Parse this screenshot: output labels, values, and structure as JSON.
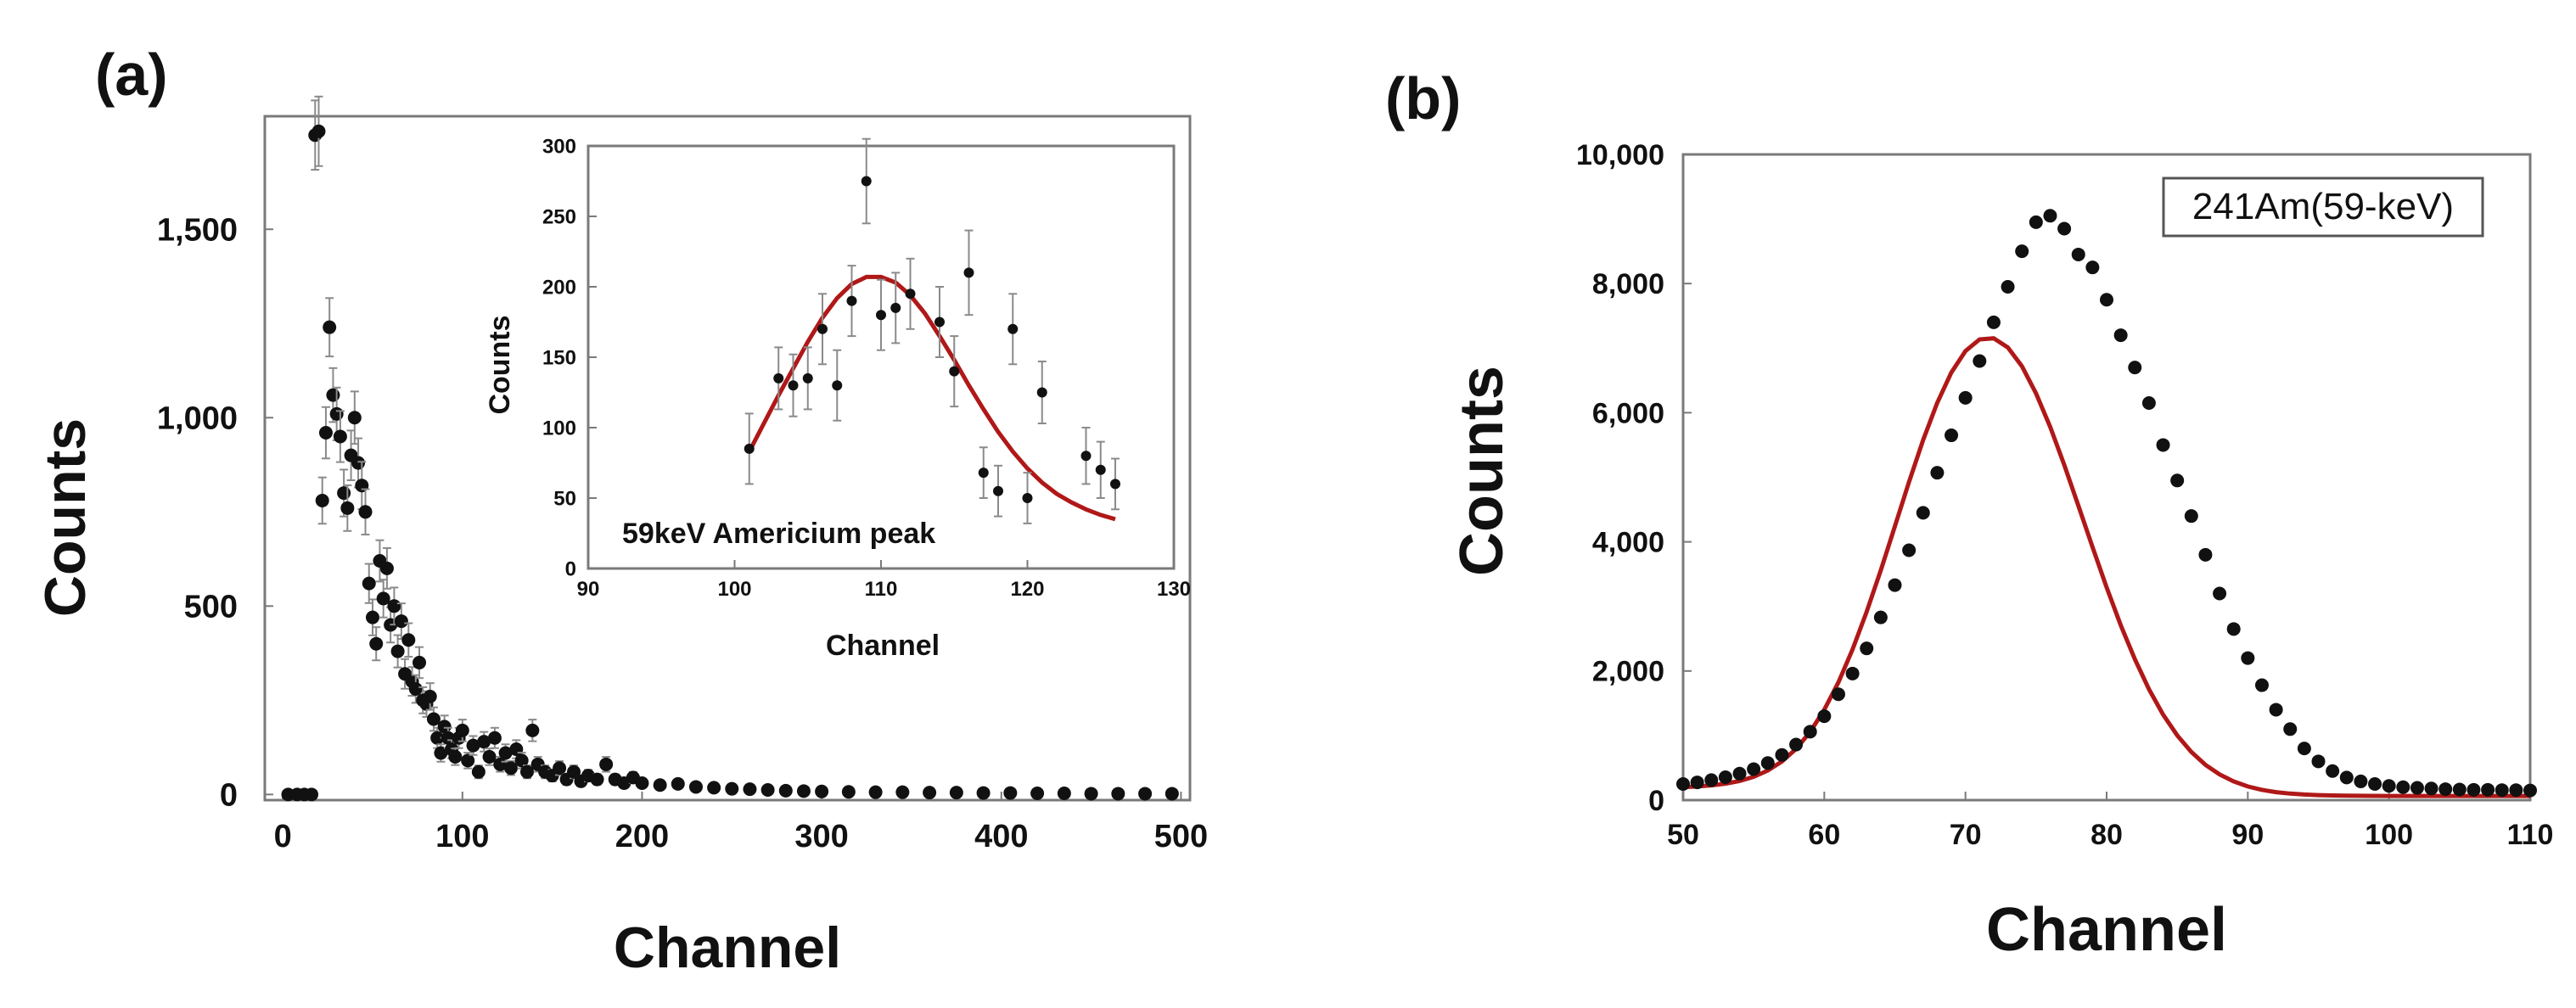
{
  "figure": {
    "panel_a_label": "(a)",
    "panel_b_label": "(b)"
  },
  "colors": {
    "fit_line": "#b01818",
    "marker": "#111111",
    "error_bar": "#8a8a8a",
    "frame": "#7a7a7a",
    "background": "#ffffff"
  },
  "chart_data": [
    {
      "id": "a-main",
      "type": "scatter",
      "title": "",
      "xlabel": "Channel",
      "ylabel": "Counts",
      "xlim": [
        -10,
        505
      ],
      "ylim": [
        -15,
        1800
      ],
      "xticks": [
        0,
        100,
        200,
        300,
        400,
        500
      ],
      "xtick_labels": [
        "0",
        "100",
        "200",
        "300",
        "400",
        "500"
      ],
      "yticks": [
        0,
        500,
        1000,
        1500
      ],
      "ytick_labels": [
        "0",
        "500",
        "1,000",
        "1,500"
      ],
      "grid": false,
      "series": [
        {
          "name": "data",
          "error_bars": true,
          "x": [
            3,
            8,
            12,
            16,
            18,
            20,
            22,
            24,
            26,
            28,
            30,
            32,
            34,
            36,
            38,
            40,
            42,
            44,
            46,
            48,
            50,
            52,
            54,
            56,
            58,
            60,
            62,
            64,
            66,
            68,
            70,
            72,
            74,
            76,
            78,
            80,
            82,
            84,
            86,
            88,
            90,
            92,
            94,
            96,
            98,
            100,
            103,
            106,
            109,
            112,
            115,
            118,
            121,
            124,
            127,
            130,
            133,
            136,
            139,
            142,
            146,
            150,
            154,
            158,
            162,
            166,
            170,
            175,
            180,
            185,
            190,
            195,
            200,
            210,
            220,
            230,
            240,
            250,
            260,
            270,
            280,
            290,
            300,
            315,
            330,
            345,
            360,
            375,
            390,
            405,
            420,
            435,
            450,
            465,
            480,
            495
          ],
          "y": [
            0,
            0,
            0,
            0,
            1750,
            1760,
            780,
            960,
            1240,
            1060,
            1010,
            950,
            800,
            760,
            900,
            1000,
            880,
            820,
            750,
            560,
            470,
            400,
            620,
            520,
            600,
            450,
            500,
            380,
            460,
            320,
            410,
            300,
            280,
            350,
            250,
            240,
            260,
            200,
            150,
            110,
            180,
            150,
            120,
            100,
            150,
            170,
            90,
            130,
            60,
            140,
            100,
            150,
            80,
            110,
            70,
            120,
            90,
            60,
            170,
            80,
            60,
            50,
            70,
            40,
            60,
            35,
            50,
            40,
            80,
            40,
            30,
            45,
            30,
            25,
            28,
            20,
            18,
            15,
            14,
            12,
            10,
            9,
            8,
            7,
            6,
            6,
            5,
            5,
            4,
            4,
            3,
            3,
            2,
            2,
            2,
            2
          ]
        }
      ]
    },
    {
      "id": "a-inset",
      "type": "scatter",
      "title": "",
      "xlabel": "Channel",
      "ylabel": "Counts",
      "annotation": "59keV Americium peak",
      "xlim": [
        90,
        130
      ],
      "ylim": [
        0,
        300
      ],
      "xticks": [
        90,
        100,
        110,
        120,
        130
      ],
      "xtick_labels": [
        "90",
        "100",
        "110",
        "120",
        "130"
      ],
      "yticks": [
        0,
        50,
        100,
        150,
        200,
        250,
        300
      ],
      "ytick_labels": [
        "0",
        "50",
        "100",
        "150",
        "200",
        "250",
        "300"
      ],
      "grid": false,
      "series": [
        {
          "name": "data",
          "error_bars": true,
          "x": [
            101,
            103,
            104,
            105,
            106,
            107,
            108,
            109,
            110,
            111,
            112,
            114,
            115,
            116,
            117,
            118,
            119,
            120,
            121,
            124,
            125,
            126
          ],
          "y": [
            85,
            135,
            130,
            135,
            170,
            130,
            190,
            275,
            180,
            185,
            195,
            175,
            140,
            210,
            68,
            55,
            170,
            50,
            125,
            80,
            70,
            60
          ],
          "error": [
            25,
            22,
            22,
            22,
            25,
            25,
            25,
            30,
            25,
            25,
            25,
            25,
            25,
            30,
            18,
            18,
            25,
            18,
            22,
            20,
            20,
            18
          ]
        },
        {
          "name": "fit",
          "line": true,
          "x": [
            101,
            102,
            103,
            104,
            105,
            106,
            107,
            108,
            109,
            110,
            111,
            112,
            113,
            114,
            115,
            116,
            117,
            118,
            119,
            120,
            121,
            122,
            123,
            124,
            125,
            126
          ],
          "y": [
            83,
            103,
            123,
            142,
            161,
            178,
            192,
            202,
            207,
            207,
            203,
            194,
            181,
            165,
            148,
            130,
            113,
            97,
            83,
            71,
            61,
            53,
            47,
            42,
            38,
            35
          ]
        }
      ]
    },
    {
      "id": "b",
      "type": "scatter",
      "title": "",
      "xlabel": "Channel",
      "ylabel": "Counts",
      "legend": "241Am(59-keV)",
      "xlim": [
        50,
        110
      ],
      "ylim": [
        0,
        10000
      ],
      "xticks": [
        50,
        60,
        70,
        80,
        90,
        100,
        110
      ],
      "xtick_labels": [
        "50",
        "60",
        "70",
        "80",
        "90",
        "100",
        "110"
      ],
      "yticks": [
        0,
        2000,
        4000,
        6000,
        8000,
        10000
      ],
      "ytick_labels": [
        "0",
        "2,000",
        "4,000",
        "6,000",
        "8,000",
        "10,000"
      ],
      "grid": false,
      "series": [
        {
          "name": "data",
          "x": [
            50,
            51,
            52,
            53,
            54,
            55,
            56,
            57,
            58,
            59,
            60,
            61,
            62,
            63,
            64,
            65,
            66,
            67,
            68,
            69,
            70,
            71,
            72,
            73,
            74,
            75,
            76,
            77,
            78,
            79,
            80,
            81,
            82,
            83,
            84,
            85,
            86,
            87,
            88,
            89,
            90,
            91,
            92,
            93,
            94,
            95,
            96,
            97,
            98,
            99,
            100,
            101,
            102,
            103,
            104,
            105,
            106,
            107,
            108,
            109,
            110
          ],
          "y": [
            250,
            275,
            310,
            355,
            410,
            480,
            575,
            700,
            860,
            1060,
            1300,
            1640,
            1960,
            2350,
            2830,
            3330,
            3870,
            4450,
            5070,
            5650,
            6230,
            6800,
            7400,
            7950,
            8500,
            8950,
            9050,
            8850,
            8450,
            8250,
            7750,
            7200,
            6700,
            6150,
            5500,
            4950,
            4400,
            3800,
            3200,
            2650,
            2200,
            1780,
            1400,
            1100,
            800,
            600,
            450,
            350,
            290,
            250,
            220,
            200,
            190,
            180,
            170,
            165,
            160,
            160,
            155,
            155,
            150
          ]
        },
        {
          "name": "fit",
          "line": true,
          "x": [
            50,
            51,
            52,
            53,
            54,
            55,
            56,
            57,
            58,
            59,
            60,
            61,
            62,
            63,
            64,
            65,
            66,
            67,
            68,
            69,
            70,
            71,
            72,
            73,
            74,
            75,
            76,
            77,
            78,
            79,
            80,
            81,
            82,
            83,
            84,
            85,
            86,
            87,
            88,
            89,
            90,
            91,
            92,
            93,
            94,
            95,
            96,
            97,
            98,
            99,
            100,
            101,
            102,
            103,
            104,
            105,
            106,
            107,
            108,
            109,
            110
          ],
          "y": [
            200,
            211,
            228,
            255,
            297,
            362,
            458,
            598,
            794,
            1057,
            1399,
            1824,
            2332,
            2915,
            3559,
            4239,
            4925,
            5577,
            6153,
            6622,
            6955,
            7135,
            7153,
            7010,
            6720,
            6300,
            5781,
            5190,
            4560,
            3919,
            3294,
            2710,
            2181,
            1717,
            1325,
            1003,
            746,
            547,
            398,
            289,
            212,
            159,
            124,
            101,
            87,
            78,
            72,
            69,
            67,
            66,
            65,
            64,
            64,
            64,
            64,
            64,
            64,
            64,
            64,
            64,
            64
          ]
        }
      ]
    }
  ]
}
